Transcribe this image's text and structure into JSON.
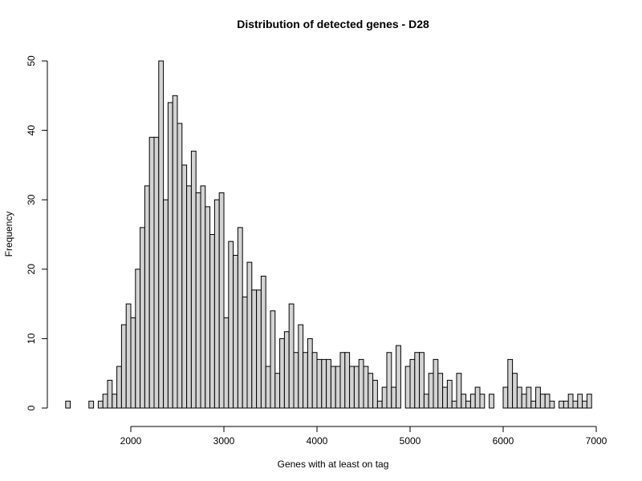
{
  "chart_data": {
    "type": "bar",
    "title": "Distribution of detected genes - D28",
    "xlabel": "Genes with at least on tag",
    "ylabel": "Frequency",
    "bin_width": 50,
    "bin_start": 1300,
    "xlim": [
      1300,
      7000
    ],
    "ylim": [
      0,
      50
    ],
    "x_ticks": [
      2000,
      3000,
      4000,
      5000,
      6000,
      7000
    ],
    "y_ticks": [
      0,
      10,
      20,
      30,
      40,
      50
    ],
    "bar_color": "#d3d3d3",
    "grid": false,
    "values": [
      1,
      0,
      0,
      0,
      0,
      1,
      0,
      1,
      2,
      4,
      2,
      6,
      12,
      15,
      13,
      20,
      26,
      32,
      39,
      39,
      50,
      30,
      44,
      45,
      41,
      35,
      32,
      37,
      31,
      32,
      29,
      25,
      30,
      31,
      13,
      24,
      22,
      26,
      16,
      21,
      17,
      17,
      19,
      6,
      14,
      5,
      10,
      11,
      15,
      8,
      12,
      8,
      10,
      8,
      7,
      7,
      7,
      6,
      6,
      8,
      8,
      6,
      6,
      7,
      6,
      5,
      4,
      1,
      3,
      8,
      3,
      9,
      0,
      6,
      7,
      8,
      8,
      2,
      5,
      7,
      5,
      3,
      4,
      1,
      5,
      2,
      1,
      2,
      3,
      2,
      0,
      2,
      0,
      0,
      3,
      7,
      5,
      3,
      2,
      3,
      1,
      3,
      2,
      2,
      1,
      0,
      1,
      1,
      2,
      1,
      2,
      1,
      2
    ]
  }
}
